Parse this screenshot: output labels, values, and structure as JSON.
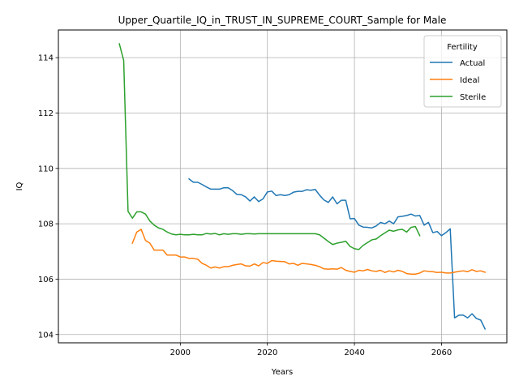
{
  "chart_data": {
    "type": "line",
    "title": "Upper_Quartile_IQ_in_TRUST_IN_SUPREME_COURT_Sample for Male",
    "xlabel": "Years",
    "ylabel": "IQ",
    "xlim": [
      1972,
      2075
    ],
    "ylim": [
      103.7,
      115.0
    ],
    "xticks": [
      2000,
      2020,
      2040,
      2060
    ],
    "yticks": [
      104,
      106,
      108,
      110,
      112,
      114
    ],
    "grid": true,
    "legend": {
      "title": "Fertility",
      "placement": "top-right"
    },
    "series": [
      {
        "name": "Actual",
        "color": "#1f77b4",
        "x": [
          2002,
          2003,
          2004,
          2005,
          2006,
          2007,
          2008,
          2009,
          2010,
          2011,
          2012,
          2013,
          2014,
          2015,
          2016,
          2017,
          2018,
          2019,
          2020,
          2021,
          2022,
          2023,
          2024,
          2025,
          2026,
          2027,
          2028,
          2029,
          2030,
          2031,
          2032,
          2033,
          2034,
          2035,
          2036,
          2037,
          2038,
          2039,
          2040,
          2041,
          2042,
          2043,
          2044,
          2045,
          2046,
          2047,
          2048,
          2049,
          2050,
          2051,
          2052,
          2053,
          2054,
          2055,
          2056,
          2057,
          2058,
          2059,
          2060,
          2061,
          2062,
          2063,
          2064,
          2065,
          2066,
          2067,
          2068,
          2069,
          2070
        ],
        "y": [
          109.62,
          109.5,
          109.5,
          109.42,
          109.33,
          109.25,
          109.25,
          109.25,
          109.3,
          109.3,
          109.2,
          109.06,
          109.05,
          108.97,
          108.82,
          108.97,
          108.8,
          108.9,
          109.15,
          109.18,
          109.02,
          109.05,
          109.02,
          109.05,
          109.14,
          109.17,
          109.17,
          109.23,
          109.21,
          109.24,
          109.03,
          108.86,
          108.77,
          108.97,
          108.72,
          108.85,
          108.85,
          108.18,
          108.19,
          107.95,
          107.88,
          107.87,
          107.85,
          107.92,
          108.05,
          108.0,
          108.1,
          108.0,
          108.25,
          108.27,
          108.3,
          108.35,
          108.28,
          108.3,
          107.95,
          108.05,
          107.68,
          107.72,
          107.57,
          107.68,
          107.82,
          104.6,
          104.7,
          104.7,
          104.6,
          104.75,
          104.58,
          104.52,
          104.2
        ]
      },
      {
        "name": "Ideal",
        "color": "#ff7f0e",
        "x": [
          1989,
          1990,
          1991,
          1992,
          1993,
          1994,
          1995,
          1996,
          1997,
          1998,
          1999,
          2000,
          2001,
          2002,
          2003,
          2004,
          2005,
          2006,
          2007,
          2008,
          2009,
          2010,
          2011,
          2012,
          2013,
          2014,
          2015,
          2016,
          2017,
          2018,
          2019,
          2020,
          2021,
          2022,
          2023,
          2024,
          2025,
          2026,
          2027,
          2028,
          2029,
          2030,
          2031,
          2032,
          2033,
          2034,
          2035,
          2036,
          2037,
          2038,
          2039,
          2040,
          2041,
          2042,
          2043,
          2044,
          2045,
          2046,
          2047,
          2048,
          2049,
          2050,
          2051,
          2052,
          2053,
          2054,
          2055,
          2056,
          2057,
          2058,
          2059,
          2060,
          2061,
          2062,
          2063,
          2064,
          2065,
          2066,
          2067,
          2068,
          2069,
          2070
        ],
        "y": [
          107.3,
          107.7,
          107.8,
          107.4,
          107.3,
          107.05,
          107.05,
          107.05,
          106.87,
          106.87,
          106.87,
          106.8,
          106.8,
          106.75,
          106.75,
          106.72,
          106.57,
          106.5,
          106.4,
          106.44,
          106.4,
          106.45,
          106.45,
          106.5,
          106.53,
          106.55,
          106.48,
          106.47,
          106.55,
          106.48,
          106.6,
          106.57,
          106.67,
          106.65,
          106.64,
          106.63,
          106.55,
          106.57,
          106.5,
          106.57,
          106.55,
          106.53,
          106.5,
          106.45,
          106.37,
          106.36,
          106.37,
          106.36,
          106.42,
          106.32,
          106.28,
          106.25,
          106.32,
          106.3,
          106.35,
          106.3,
          106.28,
          106.32,
          106.24,
          106.3,
          106.26,
          106.32,
          106.28,
          106.2,
          106.18,
          106.18,
          106.22,
          106.3,
          106.28,
          106.27,
          106.24,
          106.25,
          106.22,
          106.22,
          106.25,
          106.28,
          106.3,
          106.27,
          106.34,
          106.28,
          106.3,
          106.25
        ]
      },
      {
        "name": "Sterile",
        "color": "#2ca02c",
        "x": [
          1986,
          1987,
          1988,
          1989,
          1990,
          1991,
          1992,
          1993,
          1994,
          1995,
          1996,
          1997,
          1998,
          1999,
          2000,
          2001,
          2002,
          2003,
          2004,
          2005,
          2006,
          2007,
          2008,
          2009,
          2010,
          2011,
          2012,
          2013,
          2014,
          2015,
          2016,
          2017,
          2018,
          2019,
          2020,
          2021,
          2022,
          2023,
          2024,
          2025,
          2026,
          2027,
          2028,
          2029,
          2030,
          2031,
          2032,
          2033,
          2034,
          2035,
          2036,
          2037,
          2038,
          2039,
          2040,
          2041,
          2042,
          2043,
          2044,
          2045,
          2046,
          2047,
          2048,
          2049,
          2050,
          2051,
          2052,
          2053,
          2054,
          2055
        ],
        "y": [
          114.5,
          113.9,
          108.45,
          108.2,
          108.43,
          108.43,
          108.35,
          108.1,
          107.95,
          107.85,
          107.8,
          107.7,
          107.63,
          107.6,
          107.62,
          107.6,
          107.6,
          107.62,
          107.6,
          107.6,
          107.65,
          107.63,
          107.65,
          107.6,
          107.64,
          107.62,
          107.64,
          107.64,
          107.62,
          107.64,
          107.64,
          107.63,
          107.64,
          107.64,
          107.64,
          107.64,
          107.64,
          107.64,
          107.64,
          107.64,
          107.64,
          107.64,
          107.64,
          107.64,
          107.64,
          107.64,
          107.6,
          107.48,
          107.36,
          107.25,
          107.3,
          107.33,
          107.37,
          107.18,
          107.1,
          107.07,
          107.22,
          107.32,
          107.42,
          107.45,
          107.57,
          107.67,
          107.77,
          107.73,
          107.78,
          107.8,
          107.7,
          107.87,
          107.9,
          107.57
        ]
      }
    ]
  }
}
